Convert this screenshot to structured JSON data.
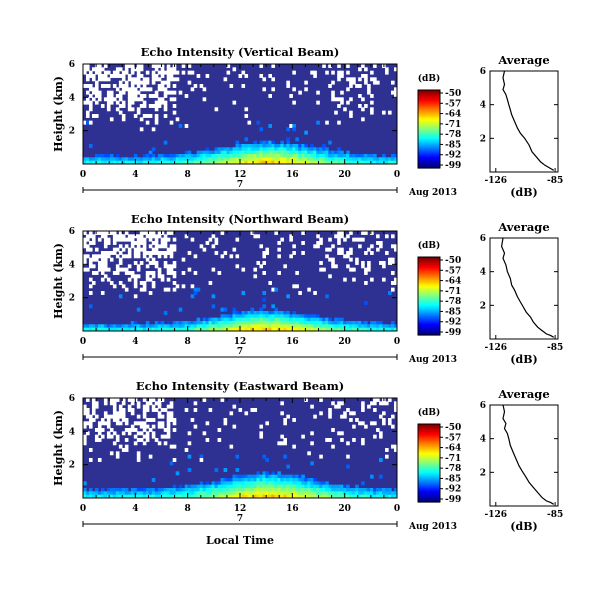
{
  "chart_data": [
    {
      "type": "heatmap",
      "title": "Echo Intensity (Vertical Beam)",
      "ylabel": "Height (km)",
      "xlabel": "",
      "x_ticks": [
        "0",
        "4",
        "8",
        "12",
        "16",
        "20",
        "0"
      ],
      "y_ticks": [
        "6",
        "4",
        "2"
      ],
      "date_marker": "7",
      "date_label": "Aug 2013",
      "xlim": [
        0,
        24
      ],
      "ylim": [
        0,
        6
      ],
      "colorbar": {
        "unit": "(dB)",
        "ticks": [
          "-50",
          "-57",
          "-64",
          "-71",
          "-78",
          "-85",
          "-92",
          "-99"
        ]
      },
      "pattern": {
        "upper_gap_fraction": 0.55,
        "plume_height_km": 1.0
      },
      "profile": {
        "title": "Average",
        "xlabel": "(dB)",
        "x_ticks": [
          "-126",
          "-85"
        ],
        "y_ticks": [
          "6",
          "4",
          "2"
        ],
        "xlim": [
          -130,
          -83
        ],
        "ylim": [
          0,
          6
        ],
        "points": [
          [
            -120,
            6.0
          ],
          [
            -121,
            5.6
          ],
          [
            -120,
            5.2
          ],
          [
            -121,
            4.9
          ],
          [
            -119,
            4.6
          ],
          [
            -118,
            4.3
          ],
          [
            -117,
            4.0
          ],
          [
            -116,
            3.7
          ],
          [
            -115,
            3.4
          ],
          [
            -113,
            3.0
          ],
          [
            -111,
            2.6
          ],
          [
            -109,
            2.3
          ],
          [
            -106,
            2.0
          ],
          [
            -103,
            1.6
          ],
          [
            -101,
            1.2
          ],
          [
            -98,
            0.9
          ],
          [
            -95,
            0.6
          ],
          [
            -92,
            0.4
          ],
          [
            -88,
            0.2
          ],
          [
            -86,
            0.1
          ]
        ]
      }
    },
    {
      "type": "heatmap",
      "title": "Echo Intensity (Northward Beam)",
      "ylabel": "Height (km)",
      "xlabel": "",
      "x_ticks": [
        "0",
        "4",
        "8",
        "12",
        "16",
        "20",
        "0"
      ],
      "y_ticks": [
        "6",
        "4",
        "2"
      ],
      "date_marker": "7",
      "date_label": "Aug 2013",
      "xlim": [
        0,
        24
      ],
      "ylim": [
        0,
        6
      ],
      "colorbar": {
        "unit": "(dB)",
        "ticks": [
          "-50",
          "-57",
          "-64",
          "-71",
          "-78",
          "-85",
          "-92",
          "-99"
        ]
      },
      "pattern": {
        "upper_gap_fraction": 0.62,
        "plume_height_km": 0.9
      },
      "profile": {
        "title": "Average",
        "xlabel": "(dB)",
        "x_ticks": [
          "-126",
          "-85"
        ],
        "y_ticks": [
          "6",
          "4",
          "2"
        ],
        "xlim": [
          -130,
          -83
        ],
        "ylim": [
          0,
          6
        ],
        "points": [
          [
            -121,
            6.0
          ],
          [
            -122,
            5.5
          ],
          [
            -120,
            5.1
          ],
          [
            -121,
            4.8
          ],
          [
            -119,
            4.4
          ],
          [
            -118,
            4.0
          ],
          [
            -116,
            3.6
          ],
          [
            -115,
            3.2
          ],
          [
            -113,
            2.9
          ],
          [
            -111,
            2.5
          ],
          [
            -109,
            2.2
          ],
          [
            -107,
            1.9
          ],
          [
            -105,
            1.6
          ],
          [
            -102,
            1.3
          ],
          [
            -100,
            1.0
          ],
          [
            -97,
            0.7
          ],
          [
            -94,
            0.5
          ],
          [
            -91,
            0.3
          ],
          [
            -88,
            0.2
          ],
          [
            -86,
            0.1
          ]
        ]
      }
    },
    {
      "type": "heatmap",
      "title": "Echo Intensity (Eastward Beam)",
      "ylabel": "Height (km)",
      "xlabel": "Local Time",
      "x_ticks": [
        "0",
        "4",
        "8",
        "12",
        "16",
        "20",
        "0"
      ],
      "y_ticks": [
        "6",
        "4",
        "2"
      ],
      "date_marker": "7",
      "date_label": "Aug 2013",
      "xlim": [
        0,
        24
      ],
      "ylim": [
        0,
        6
      ],
      "colorbar": {
        "unit": "(dB)",
        "ticks": [
          "-50",
          "-57",
          "-64",
          "-71",
          "-78",
          "-85",
          "-92",
          "-99"
        ]
      },
      "pattern": {
        "upper_gap_fraction": 0.45,
        "plume_height_km": 1.1
      },
      "profile": {
        "title": "Average",
        "xlabel": "(dB)",
        "x_ticks": [
          "-126",
          "-85"
        ],
        "y_ticks": [
          "6",
          "4",
          "2"
        ],
        "xlim": [
          -130,
          -83
        ],
        "ylim": [
          0,
          6
        ],
        "points": [
          [
            -121,
            6.0
          ],
          [
            -120,
            5.6
          ],
          [
            -121,
            5.2
          ],
          [
            -119,
            4.9
          ],
          [
            -120,
            4.6
          ],
          [
            -118,
            4.3
          ],
          [
            -117,
            4.0
          ],
          [
            -116,
            3.6
          ],
          [
            -114,
            3.2
          ],
          [
            -112,
            2.8
          ],
          [
            -110,
            2.4
          ],
          [
            -108,
            2.1
          ],
          [
            -105,
            1.7
          ],
          [
            -103,
            1.4
          ],
          [
            -100,
            1.1
          ],
          [
            -97,
            0.8
          ],
          [
            -94,
            0.5
          ],
          [
            -91,
            0.3
          ],
          [
            -88,
            0.2
          ],
          [
            -86,
            0.1
          ]
        ]
      }
    }
  ]
}
